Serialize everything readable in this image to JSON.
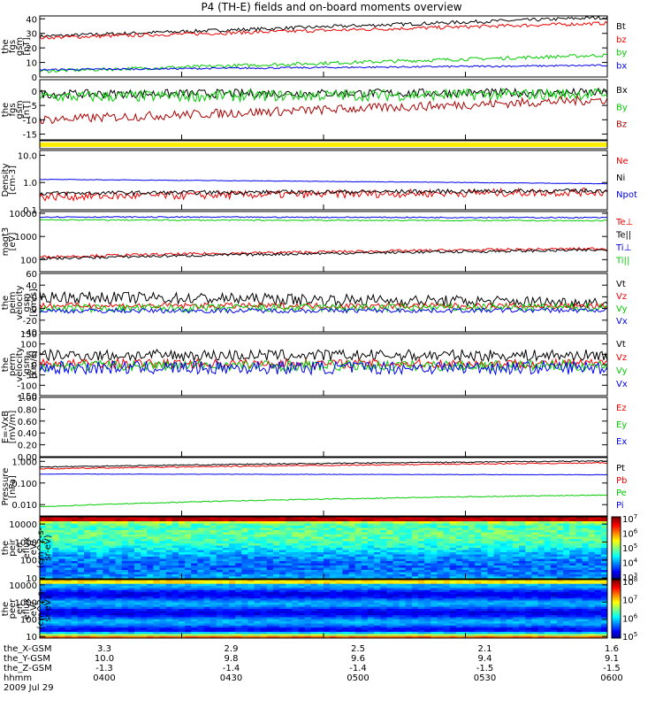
{
  "title": "P4 (TH-E) fields and on-board moments overview",
  "colors": {
    "black": "#000000",
    "red": "#ee0000",
    "green": "#00cc00",
    "blue": "#0000ee",
    "darkred": "#aa0000",
    "yellow": "#ffee00"
  },
  "chart_data": {
    "type": "line",
    "time_ticks": [
      "0400",
      "0430",
      "0500",
      "0530",
      "0600"
    ],
    "ephemeris": {
      "rows": [
        {
          "label": "the_X-GSM",
          "values": [
            "3.3",
            "2.9",
            "2.5",
            "2.1",
            "1.6"
          ]
        },
        {
          "label": "the_Y-GSM",
          "values": [
            "10.0",
            "9.8",
            "9.6",
            "9.4",
            "9.1"
          ]
        },
        {
          "label": "the_Z-GSM",
          "values": [
            "-1.3",
            "-1.4",
            "-1.4",
            "-1.5",
            "-1.5"
          ]
        },
        {
          "label": "hhmm",
          "values": [
            "0400",
            "0430",
            "0500",
            "0530",
            "0600"
          ]
        }
      ],
      "date": "2009 Jul 29"
    },
    "panels": [
      {
        "id": "fgs_mag",
        "ylabel": [
          "the",
          "fgs",
          "gsm",
          "[nT]"
        ],
        "ylim": [
          0,
          42
        ],
        "ticks": [
          0,
          10,
          20,
          30,
          40
        ],
        "ticklabels": [
          "0",
          "10",
          "20",
          "30",
          "40"
        ],
        "series": [
          {
            "name": "Bt",
            "color": "black",
            "start": 28,
            "end": 41,
            "noise": 1.2
          },
          {
            "name": "bz",
            "color": "red",
            "start": 27,
            "end": 37,
            "noise": 1.2
          },
          {
            "name": "by",
            "color": "green",
            "start": 4,
            "end": 15,
            "noise": 1.2
          },
          {
            "name": "bx",
            "color": "blue",
            "start": 5,
            "end": 8,
            "noise": 0.6
          }
        ]
      },
      {
        "id": "fgs_dp",
        "ylabel": [
          "the",
          "fgs",
          "gsm",
          "[nT]"
        ],
        "ylim": [
          -17,
          4
        ],
        "ticks": [
          -15,
          -10,
          -5,
          0
        ],
        "ticklabels": [
          "-15",
          "-10",
          "-5",
          "0"
        ],
        "series": [
          {
            "name": "Bx",
            "color": "black",
            "start": -1,
            "end": -0.5,
            "noise": 1.5
          },
          {
            "name": "By",
            "color": "green",
            "start": -2,
            "end": -1,
            "noise": 2.0
          },
          {
            "name": "Bz",
            "color": "darkred",
            "start": -10,
            "end": -3,
            "noise": 1.6
          }
        ]
      },
      {
        "id": "flag",
        "ylabel": [],
        "ylim": [
          0,
          1
        ],
        "ticks": [],
        "ticklabels": [],
        "series": []
      },
      {
        "id": "density",
        "log": true,
        "ylabel": [
          "Density",
          "[cm-3]"
        ],
        "ylim": [
          0.1,
          15
        ],
        "ticks": [
          0.1,
          1.0,
          10.0
        ],
        "ticklabels": [
          "0.1",
          "1.0",
          "10.0"
        ],
        "series": [
          {
            "name": "Ne",
            "color": "red",
            "start": 0.3,
            "end": 0.45,
            "noise": 0.3
          },
          {
            "name": "Ni",
            "color": "black",
            "start": 0.4,
            "end": 0.5,
            "noise": 0.15
          },
          {
            "name": "Npot",
            "color": "blue",
            "start": 1.3,
            "end": 0.9,
            "noise": 0.02
          }
        ]
      },
      {
        "id": "temp",
        "log": true,
        "ylabel": [
          "magt3",
          "[eV]"
        ],
        "ylim": [
          30,
          12000
        ],
        "ticks": [
          100,
          1000,
          10000
        ],
        "ticklabels": [
          "100",
          "1000",
          "10000"
        ],
        "series": [
          {
            "name": "Te⊥",
            "color": "red",
            "start": 130,
            "end": 300,
            "noise": 0.12
          },
          {
            "name": "Te||",
            "color": "black",
            "start": 110,
            "end": 260,
            "noise": 0.12
          },
          {
            "name": "Ti⊥",
            "color": "blue",
            "start": 7000,
            "end": 6500,
            "noise": 0.05
          },
          {
            "name": "Ti||",
            "color": "green",
            "start": 5200,
            "end": 4800,
            "noise": 0.05
          }
        ]
      },
      {
        "id": "v_eim",
        "ylabel": [
          "the",
          "peim",
          "velocity",
          "gsm",
          "[km/s]"
        ],
        "ylim": [
          -40,
          60
        ],
        "ticks": [
          -40,
          -20,
          0,
          20,
          40,
          60
        ],
        "ticklabels": [
          "-40",
          "-20",
          "0",
          "20",
          "40",
          "60"
        ],
        "series": [
          {
            "name": "Vt",
            "color": "black",
            "start": 20,
            "end": 10,
            "noise": 10
          },
          {
            "name": "Vz",
            "color": "red",
            "start": 5,
            "end": 4,
            "noise": 5
          },
          {
            "name": "Vy",
            "color": "green",
            "start": 0,
            "end": 2,
            "noise": 7
          },
          {
            "name": "Vx",
            "color": "blue",
            "start": -4,
            "end": -3,
            "noise": 4
          }
        ]
      },
      {
        "id": "v_erm",
        "ylabel": [
          "the",
          "perm",
          "velocity",
          "gsm",
          "[km/s]"
        ],
        "ylim": [
          -150,
          150
        ],
        "ticks": [
          -150,
          -100,
          -50,
          0,
          50,
          100,
          150
        ],
        "ticklabels": [
          "-150",
          "-100",
          "-50",
          "0",
          "50",
          "100",
          "150"
        ],
        "series": [
          {
            "name": "Vt",
            "color": "black",
            "start": 45,
            "end": 45,
            "noise": 28
          },
          {
            "name": "Vz",
            "color": "red",
            "start": 5,
            "end": 5,
            "noise": 22
          },
          {
            "name": "Vy",
            "color": "green",
            "start": -5,
            "end": -5,
            "noise": 26
          },
          {
            "name": "Vx",
            "color": "blue",
            "start": -15,
            "end": -15,
            "noise": 32
          }
        ]
      },
      {
        "id": "efield",
        "ylabel": [
          "E=-VxB",
          "[mV/m]"
        ],
        "ylim": [
          0,
          1
        ],
        "ticks": [
          0,
          0.2,
          0.4,
          0.6,
          0.8,
          1.0
        ],
        "ticklabels": [
          "0.00",
          "0.20",
          "0.40",
          "0.60",
          "0.80",
          "1.00"
        ],
        "series": [
          {
            "name": "Ez",
            "color": "red",
            "start": null,
            "end": null,
            "noise": 0
          },
          {
            "name": "Ey",
            "color": "green",
            "start": null,
            "end": null,
            "noise": 0
          },
          {
            "name": "Ex",
            "color": "blue",
            "start": null,
            "end": null,
            "noise": 0
          }
        ]
      },
      {
        "id": "pressure",
        "log": true,
        "ylabel": [
          "Pressure",
          "[nPa]"
        ],
        "ylim": [
          0.003,
          1.5
        ],
        "ticks": [
          0.01,
          0.1,
          1.0
        ],
        "ticklabels": [
          "0.010",
          "0.100",
          "1.000"
        ],
        "series": [
          {
            "name": "Pt",
            "color": "black",
            "start": 0.55,
            "end": 1.05,
            "noise": 0.05
          },
          {
            "name": "Pb",
            "color": "red",
            "start": 0.45,
            "end": 0.85,
            "noise": 0.05
          },
          {
            "name": "Pe",
            "color": "green",
            "start": 0.008,
            "end": 0.028,
            "noise": 0.04
          },
          {
            "name": "Pi",
            "color": "blue",
            "start": 0.26,
            "end": 0.24,
            "noise": 0.02
          }
        ]
      },
      {
        "id": "spec_ion",
        "type": "heatmap",
        "log": true,
        "ylabel": [
          "the",
          "peir",
          "en",
          "eflux",
          "eV/",
          "(cm^2-s-",
          "sr-eV)"
        ],
        "ylim": [
          9,
          25000
        ],
        "ticks": [
          10,
          100,
          1000,
          10000
        ],
        "ticklabels": [
          "10",
          "100",
          "1000",
          "10000"
        ],
        "colorbar": {
          "range": [
            100,
            10000000.0
          ],
          "ticks": [
            "10",
            "10",
            "10",
            "10",
            "10"
          ],
          "exponents": [
            "3",
            "4",
            "5",
            "6",
            "7"
          ]
        }
      },
      {
        "id": "spec_ele",
        "type": "heatmap",
        "log": true,
        "ylabel": [
          "the",
          "peer",
          "en",
          "eflux",
          "eV/",
          "(cm^2-s-",
          "sr-eV)"
        ],
        "ylim": [
          8,
          20000
        ],
        "ticks": [
          10,
          100,
          1000,
          10000
        ],
        "ticklabels": [
          "10",
          "100",
          "1000",
          "10000"
        ],
        "colorbar": {
          "range": [
            100000.0,
            100000000.0
          ],
          "ticks": [
            "10",
            "10",
            "10",
            "10"
          ],
          "exponents": [
            "5",
            "6",
            "7",
            "8"
          ]
        }
      }
    ]
  }
}
